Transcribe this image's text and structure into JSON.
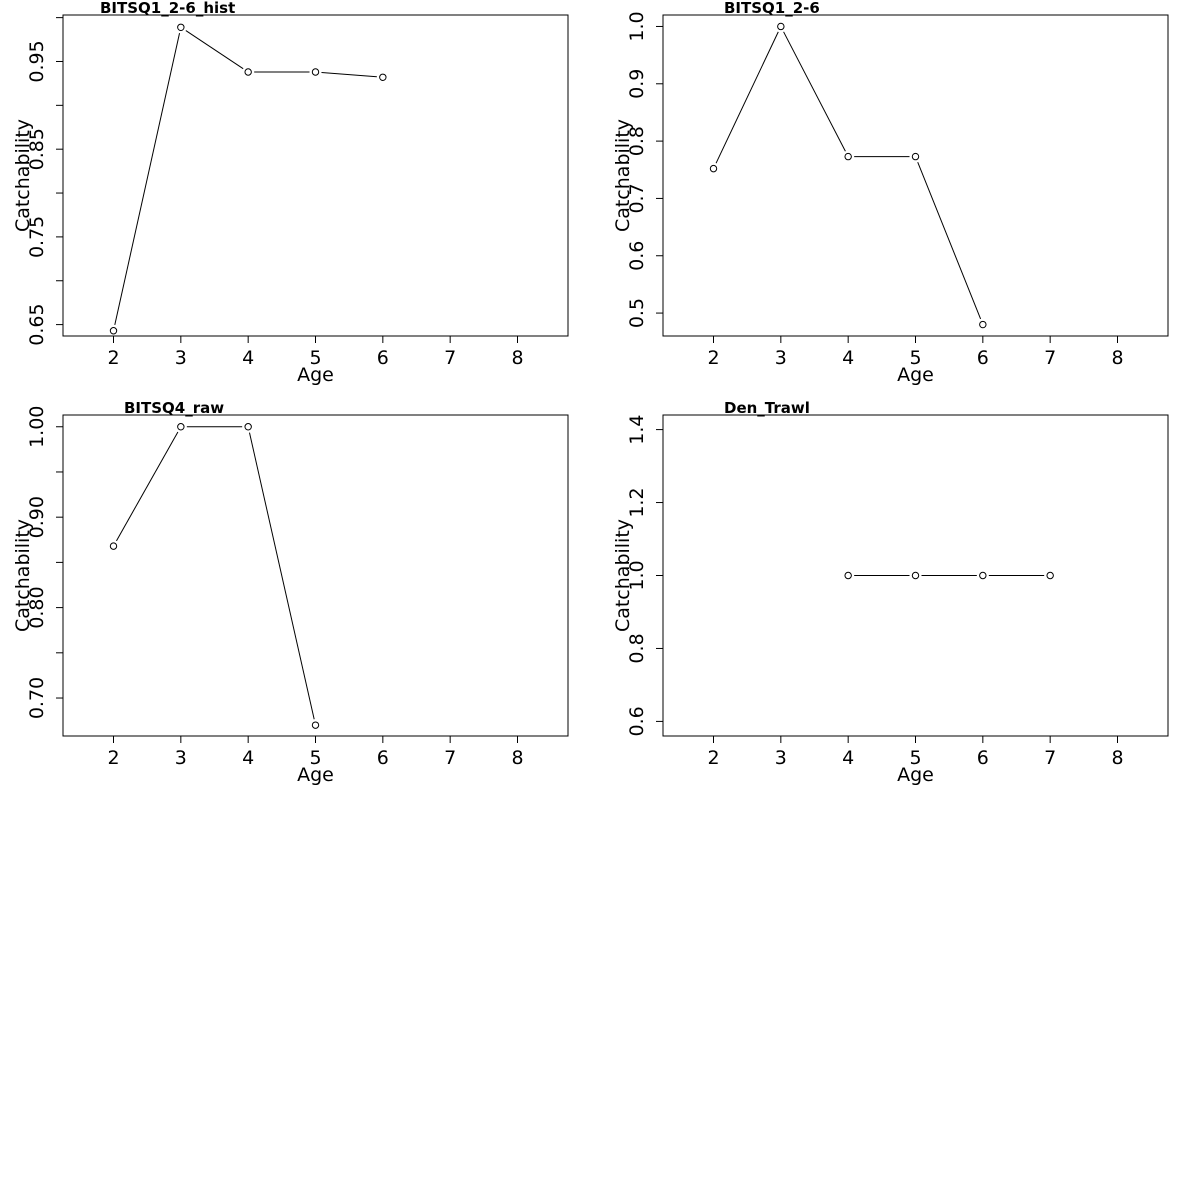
{
  "chart_data": [
    {
      "type": "line",
      "title": "BITSQ1_2-6_hist",
      "xlabel": "Age",
      "ylabel": "Catchability",
      "xlim": [
        1.25,
        8.75
      ],
      "ylim": [
        0.637,
        1.003
      ],
      "xticks": [
        2,
        3,
        4,
        5,
        6,
        7,
        8
      ],
      "xtick_labels": [
        "2",
        "3",
        "4",
        "5",
        "6",
        "7",
        "8"
      ],
      "yticks": [
        0.65,
        0.7,
        0.75,
        0.8,
        0.85,
        0.9,
        0.95,
        1.0
      ],
      "ytick_labels": [
        "0.65",
        "",
        "0.75",
        "",
        "0.85",
        "",
        "0.95",
        ""
      ],
      "x": [
        2,
        3,
        4,
        5,
        6
      ],
      "values": [
        0.643,
        0.989,
        0.938,
        0.938,
        0.932
      ]
    },
    {
      "type": "line",
      "title": "BITSQ1_2-6",
      "xlabel": "Age",
      "ylabel": "Catchability",
      "xlim": [
        1.25,
        8.75
      ],
      "ylim": [
        0.46,
        1.02
      ],
      "xticks": [
        2,
        3,
        4,
        5,
        6,
        7,
        8
      ],
      "xtick_labels": [
        "2",
        "3",
        "4",
        "5",
        "6",
        "7",
        "8"
      ],
      "yticks": [
        0.5,
        0.6,
        0.7,
        0.8,
        0.9,
        1.0
      ],
      "ytick_labels": [
        "0.5",
        "0.6",
        "0.7",
        "0.8",
        "0.9",
        "1.0"
      ],
      "x": [
        2,
        3,
        4,
        5,
        6
      ],
      "values": [
        0.752,
        1.0,
        0.773,
        0.773,
        0.48
      ]
    },
    {
      "type": "line",
      "title": "BITSQ4_raw",
      "xlabel": "Age",
      "ylabel": "Catchability",
      "xlim": [
        1.25,
        8.75
      ],
      "ylim": [
        0.658,
        1.013
      ],
      "xticks": [
        2,
        3,
        4,
        5,
        6,
        7,
        8
      ],
      "xtick_labels": [
        "2",
        "3",
        "4",
        "5",
        "6",
        "7",
        "8"
      ],
      "yticks": [
        0.7,
        0.75,
        0.8,
        0.85,
        0.9,
        0.95,
        1.0
      ],
      "ytick_labels": [
        "0.70",
        "",
        "0.80",
        "",
        "0.90",
        "",
        "1.00"
      ],
      "x": [
        2,
        3,
        4,
        5
      ],
      "values": [
        0.868,
        1.0,
        1.0,
        0.67
      ]
    },
    {
      "type": "line",
      "title": "Den_Trawl",
      "xlabel": "Age",
      "ylabel": "Catchability",
      "xlim": [
        1.25,
        8.75
      ],
      "ylim": [
        0.56,
        1.44
      ],
      "xticks": [
        2,
        3,
        4,
        5,
        6,
        7,
        8
      ],
      "xtick_labels": [
        "2",
        "3",
        "4",
        "5",
        "6",
        "7",
        "8"
      ],
      "yticks": [
        0.6,
        0.8,
        1.0,
        1.2,
        1.4
      ],
      "ytick_labels": [
        "0.6",
        "0.8",
        "1.0",
        "1.2",
        "1.4"
      ],
      "x": [
        4,
        5,
        6,
        7
      ],
      "values": [
        1.0,
        1.0,
        1.0,
        1.0
      ]
    }
  ]
}
